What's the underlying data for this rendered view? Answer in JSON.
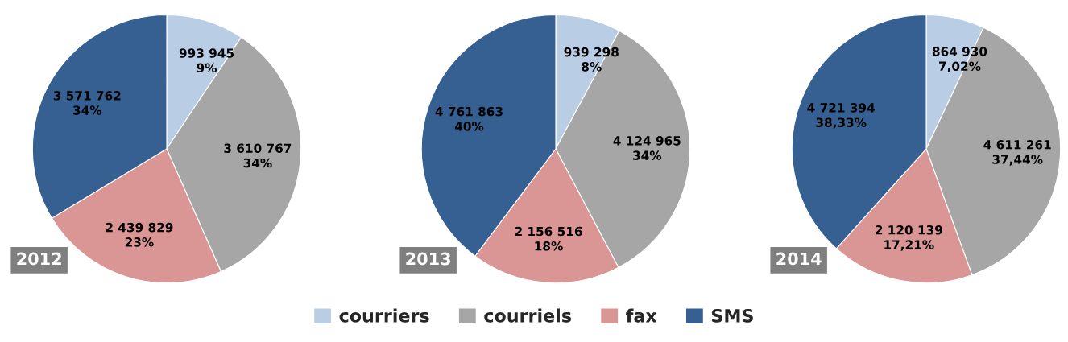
{
  "chart_data": [
    {
      "type": "pie",
      "title": "2012",
      "categories": [
        "courriers",
        "courriels",
        "fax",
        "SMS"
      ],
      "values": [
        993945,
        3610767,
        2439829,
        3571762
      ],
      "colors": [
        "#b9cde5",
        "#a6a6a6",
        "#d99694",
        "#376092"
      ],
      "value_labels": [
        "993 945\n9%",
        "3 610 767\n34%",
        "2 439 829\n23%",
        "3 571 762\n34%"
      ],
      "legend": "bottom"
    },
    {
      "type": "pie",
      "title": "2013",
      "categories": [
        null,
        null,
        null,
        null
      ],
      "values": [
        939298,
        4124965,
        2156516,
        4761863
      ],
      "colors": [
        "#b9cde5",
        "#a6a6a6",
        "#d99694",
        "#376092"
      ],
      "value_labels": [
        "939 298\n8%",
        "4 124 965\n34%",
        "2 156 516\n18%",
        "4 761 863\n40%"
      ]
    },
    {
      "type": "pie",
      "title": "2014",
      "categories": [
        null,
        null,
        null,
        null
      ],
      "values": [
        864930,
        4611261,
        2120139,
        4721394
      ],
      "colors": [
        "#b9cde5",
        "#a6a6a6",
        "#d99694",
        "#376092"
      ],
      "value_labels": [
        "864 930\n7,02%",
        "4 611 261\n37,44%",
        "2 120 139\n17,21%",
        "4 721 394\n38,33%"
      ]
    }
  ]
}
